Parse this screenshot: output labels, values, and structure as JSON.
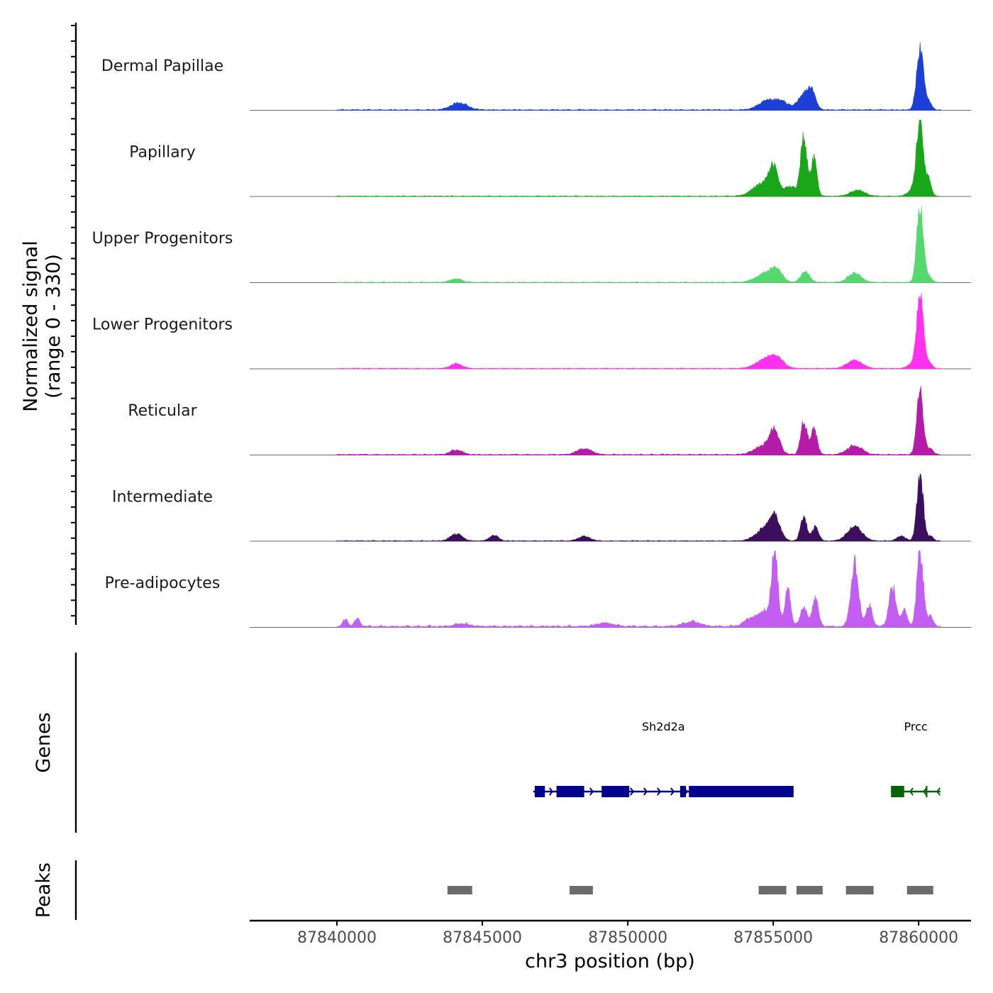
{
  "chart_data": {
    "type": "area",
    "region": "chr3:87837000-87861800",
    "xlabel": "chr3 position (bp)",
    "xlim": [
      87837000,
      87861800
    ],
    "x_ticks": [
      87840000,
      87845000,
      87850000,
      87855000,
      87860000
    ],
    "x_tick_labels": [
      "87840000",
      "87845000",
      "87850000",
      "87855000",
      "87860000"
    ],
    "ylabel_line1": "Normalized signal",
    "ylabel_line2": "(range 0 - 330)",
    "ylim": [
      0,
      330
    ],
    "series": [
      {
        "name": "Dermal Papillae",
        "color": "#1c3fd6",
        "background": 4,
        "data_end": 87860750,
        "peaks": [
          [
            87844200,
            30,
            280
          ],
          [
            87854800,
            40,
            300
          ],
          [
            87855300,
            30,
            250
          ],
          [
            87856000,
            55,
            180
          ],
          [
            87856300,
            80,
            150
          ],
          [
            87860050,
            260,
            120
          ],
          [
            87860350,
            30,
            100
          ]
        ]
      },
      {
        "name": "Papillary",
        "color": "#19a619",
        "background": 3,
        "data_end": 87860750,
        "peaks": [
          [
            87854600,
            50,
            320
          ],
          [
            87855000,
            110,
            160
          ],
          [
            87855600,
            40,
            220
          ],
          [
            87856050,
            250,
            110
          ],
          [
            87856400,
            160,
            100
          ],
          [
            87857900,
            25,
            250
          ],
          [
            87859900,
            40,
            200
          ],
          [
            87860050,
            310,
            110
          ],
          [
            87860350,
            70,
            90
          ]
        ]
      },
      {
        "name": "Upper Progenitors",
        "color": "#55d96e",
        "background": 3,
        "data_end": 87860750,
        "peaks": [
          [
            87844100,
            15,
            200
          ],
          [
            87854700,
            35,
            320
          ],
          [
            87855100,
            50,
            200
          ],
          [
            87856100,
            45,
            150
          ],
          [
            87857800,
            40,
            220
          ],
          [
            87860050,
            330,
            110
          ],
          [
            87860350,
            25,
            100
          ]
        ]
      },
      {
        "name": "Lower Progenitors",
        "color": "#ff30ee",
        "background": 3,
        "data_end": 87860750,
        "peaks": [
          [
            87844100,
            20,
            200
          ],
          [
            87854700,
            35,
            320
          ],
          [
            87855100,
            40,
            250
          ],
          [
            87857800,
            35,
            260
          ],
          [
            87859900,
            30,
            200
          ],
          [
            87860050,
            310,
            110
          ],
          [
            87860350,
            25,
            100
          ]
        ]
      },
      {
        "name": "Reticular",
        "color": "#b31ba8",
        "background": 4,
        "data_end": 87860750,
        "peaks": [
          [
            87844100,
            20,
            200
          ],
          [
            87848500,
            25,
            250
          ],
          [
            87854700,
            40,
            320
          ],
          [
            87855050,
            90,
            160
          ],
          [
            87856050,
            140,
            110
          ],
          [
            87856400,
            110,
            110
          ],
          [
            87857800,
            40,
            250
          ],
          [
            87860050,
            270,
            110
          ],
          [
            87860400,
            25,
            100
          ]
        ]
      },
      {
        "name": "Intermediate",
        "color": "#3c0e5e",
        "background": 3,
        "data_end": 87860750,
        "peaks": [
          [
            87844100,
            30,
            200
          ],
          [
            87845400,
            25,
            150
          ],
          [
            87848500,
            20,
            200
          ],
          [
            87854700,
            50,
            300
          ],
          [
            87855050,
            90,
            180
          ],
          [
            87856050,
            100,
            110
          ],
          [
            87856450,
            60,
            110
          ],
          [
            87857800,
            60,
            250
          ],
          [
            87859400,
            20,
            150
          ],
          [
            87860050,
            270,
            110
          ],
          [
            87860400,
            20,
            100
          ]
        ]
      },
      {
        "name": "Pre-adipocytes",
        "color": "#c25ef2",
        "background": 8,
        "data_end": 87860750,
        "peaks": [
          [
            87840300,
            30,
            90
          ],
          [
            87840700,
            35,
            90
          ],
          [
            87844300,
            12,
            250
          ],
          [
            87849200,
            15,
            300
          ],
          [
            87852200,
            20,
            300
          ],
          [
            87854300,
            40,
            250
          ],
          [
            87854700,
            60,
            150
          ],
          [
            87855050,
            330,
            110
          ],
          [
            87855500,
            160,
            100
          ],
          [
            87856050,
            80,
            120
          ],
          [
            87856450,
            130,
            100
          ],
          [
            87857800,
            270,
            130
          ],
          [
            87858300,
            90,
            110
          ],
          [
            87859100,
            170,
            120
          ],
          [
            87859500,
            70,
            100
          ],
          [
            87860050,
            320,
            110
          ],
          [
            87860400,
            40,
            100
          ]
        ]
      }
    ],
    "genes_title": "Genes",
    "genes": [
      {
        "name": "Sh2d2a",
        "color": "#00008b",
        "strand": "+",
        "start": 87846750,
        "end": 87855700,
        "exons": [
          [
            87846800,
            87847150
          ],
          [
            87847550,
            87848500
          ],
          [
            87849100,
            87850050
          ],
          [
            87851800,
            87852000
          ],
          [
            87852100,
            87855700
          ]
        ]
      },
      {
        "name": "Prcc",
        "color": "#006400",
        "strand": "-",
        "start": 87859050,
        "end": 87860750,
        "exons": [
          [
            87859050,
            87859500
          ],
          [
            87860250,
            87860300
          ]
        ]
      }
    ],
    "peaks_title": "Peaks",
    "peaks_intervals": [
      [
        87843800,
        87844650
      ],
      [
        87848000,
        87848800
      ],
      [
        87854500,
        87855450
      ],
      [
        87855800,
        87856700
      ],
      [
        87857500,
        87858450
      ],
      [
        87859600,
        87860500
      ]
    ]
  }
}
